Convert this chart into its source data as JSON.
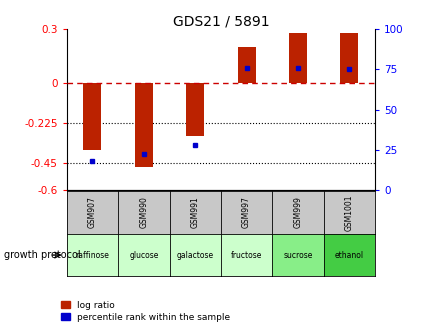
{
  "title": "GDS21 / 5891",
  "samples": [
    "GSM907",
    "GSM990",
    "GSM991",
    "GSM997",
    "GSM999",
    "GSM1001"
  ],
  "protocols": [
    "raffinose",
    "glucose",
    "galactose",
    "fructose",
    "sucrose",
    "ethanol"
  ],
  "log_ratios": [
    -0.38,
    -0.47,
    -0.3,
    0.2,
    0.28,
    0.28
  ],
  "pct_rank_values": [
    18,
    22,
    28,
    76,
    76,
    75
  ],
  "ylim": [
    -0.6,
    0.3
  ],
  "yticks_left": [
    0.3,
    0.0,
    -0.225,
    -0.45,
    -0.6
  ],
  "yticks_left_labels": [
    "0.3",
    "0",
    "-0.225",
    "-0.45",
    "-0.6"
  ],
  "yticks_right": [
    100,
    75,
    50,
    25,
    0
  ],
  "dotted_lines": [
    -0.225,
    -0.45
  ],
  "bar_color": "#bb2200",
  "pct_color": "#0000cc",
  "bar_width": 0.35,
  "bg_color": "#ffffff",
  "gray_cell": "#c8c8c8",
  "green_cell_light": "#ccffcc",
  "green_cell_dark": "#88ee88"
}
